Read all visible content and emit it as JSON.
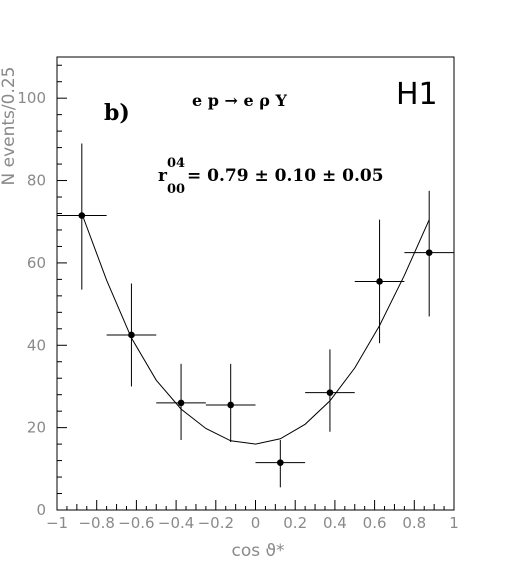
{
  "chart_data": {
    "type": "scatter",
    "xlabel": "cos ϑ*",
    "ylabel": "N events/0.25",
    "xlim": [
      -1,
      1
    ],
    "ylim": [
      0,
      110
    ],
    "grid": false,
    "x_ticks": [
      "−1",
      "−0.8",
      "−0.6",
      "−0.4",
      "−0.2",
      "0",
      "0.2",
      "0.4",
      "0.6",
      "0.8",
      "1"
    ],
    "y_ticks": [
      "0",
      "20",
      "40",
      "60",
      "80",
      "100"
    ],
    "panel_label": "b)",
    "process_label": "e p → e ρ Y",
    "annotation": {
      "symbol": "r",
      "superscript": "04",
      "subscript": "00",
      "value_text": "= 0.79 ± 0.10 ± 0.05"
    },
    "experiment_label": "H1",
    "series": [
      {
        "type": "scatter",
        "points": [
          {
            "x": -0.875,
            "y": 71.5,
            "xerr": 0.125,
            "yerr_low": 18.0,
            "yerr_high": 17.5
          },
          {
            "x": -0.625,
            "y": 42.5,
            "xerr": 0.125,
            "yerr_low": 12.5,
            "yerr_high": 12.5
          },
          {
            "x": -0.375,
            "y": 26.0,
            "xerr": 0.125,
            "yerr_low": 9.0,
            "yerr_high": 9.5
          },
          {
            "x": -0.125,
            "y": 25.5,
            "xerr": 0.125,
            "yerr_low": 9.0,
            "yerr_high": 10.0
          },
          {
            "x": 0.125,
            "y": 11.5,
            "xerr": 0.125,
            "yerr_low": 6.0,
            "yerr_high": 5.5
          },
          {
            "x": 0.375,
            "y": 28.5,
            "xerr": 0.125,
            "yerr_low": 9.5,
            "yerr_high": 10.5
          },
          {
            "x": 0.625,
            "y": 55.5,
            "xerr": 0.125,
            "yerr_low": 15.0,
            "yerr_high": 15.0
          },
          {
            "x": 0.875,
            "y": 62.5,
            "xerr": 0.125,
            "yerr_low": 15.5,
            "yerr_high": 15.0
          }
        ]
      },
      {
        "type": "line",
        "x": [
          -0.875,
          -0.75,
          -0.625,
          -0.5,
          -0.375,
          -0.25,
          -0.125,
          0.0,
          0.125,
          0.25,
          0.375,
          0.5,
          0.625,
          0.75,
          0.875
        ],
        "y": [
          72.0,
          55.8,
          41.8,
          31.5,
          24.5,
          19.8,
          16.8,
          16.0,
          17.3,
          20.8,
          26.5,
          34.5,
          44.8,
          57.0,
          70.5
        ]
      }
    ]
  }
}
